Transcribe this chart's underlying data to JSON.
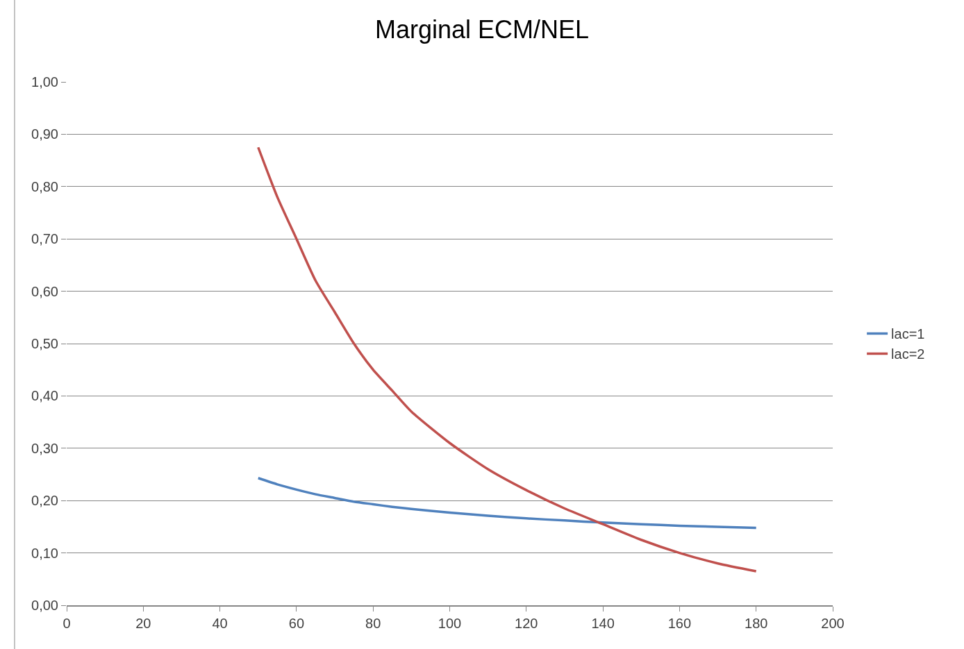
{
  "chart_data": {
    "type": "line",
    "title": "Marginal ECM/NEL",
    "x": [
      50,
      55,
      60,
      65,
      70,
      75,
      80,
      85,
      90,
      100,
      110,
      120,
      130,
      140,
      150,
      160,
      170,
      180
    ],
    "series": [
      {
        "name": "lac=1",
        "color": "#4f81bd",
        "values": [
          0.243,
          0.231,
          0.221,
          0.212,
          0.205,
          0.198,
          0.193,
          0.188,
          0.184,
          0.177,
          0.171,
          0.166,
          0.162,
          0.158,
          0.155,
          0.152,
          0.15,
          0.148
        ]
      },
      {
        "name": "lac=2",
        "color": "#c0504d",
        "values": [
          0.875,
          0.78,
          0.7,
          0.62,
          0.56,
          0.5,
          0.45,
          0.41,
          0.37,
          0.31,
          0.26,
          0.22,
          0.185,
          0.155,
          0.125,
          0.1,
          0.08,
          0.065
        ]
      }
    ],
    "xlim": [
      0,
      200
    ],
    "xticks": [
      0,
      20,
      40,
      60,
      80,
      100,
      120,
      140,
      160,
      180,
      200
    ],
    "ylim": [
      0,
      1
    ],
    "yticks": [
      {
        "value": 0,
        "label": "0,00"
      },
      {
        "value": 0.1,
        "label": "0,10"
      },
      {
        "value": 0.2,
        "label": "0,20"
      },
      {
        "value": 0.3,
        "label": "0,30"
      },
      {
        "value": 0.4,
        "label": "0,40"
      },
      {
        "value": 0.5,
        "label": "0,50"
      },
      {
        "value": 0.6,
        "label": "0,60"
      },
      {
        "value": 0.7,
        "label": "0,70"
      },
      {
        "value": 0.8,
        "label": "0,80"
      },
      {
        "value": 0.9,
        "label": "0,90"
      },
      {
        "value": 1,
        "label": "1,00"
      }
    ],
    "grid": "y",
    "legend": "right",
    "marker": "none",
    "line_style": "solid"
  }
}
